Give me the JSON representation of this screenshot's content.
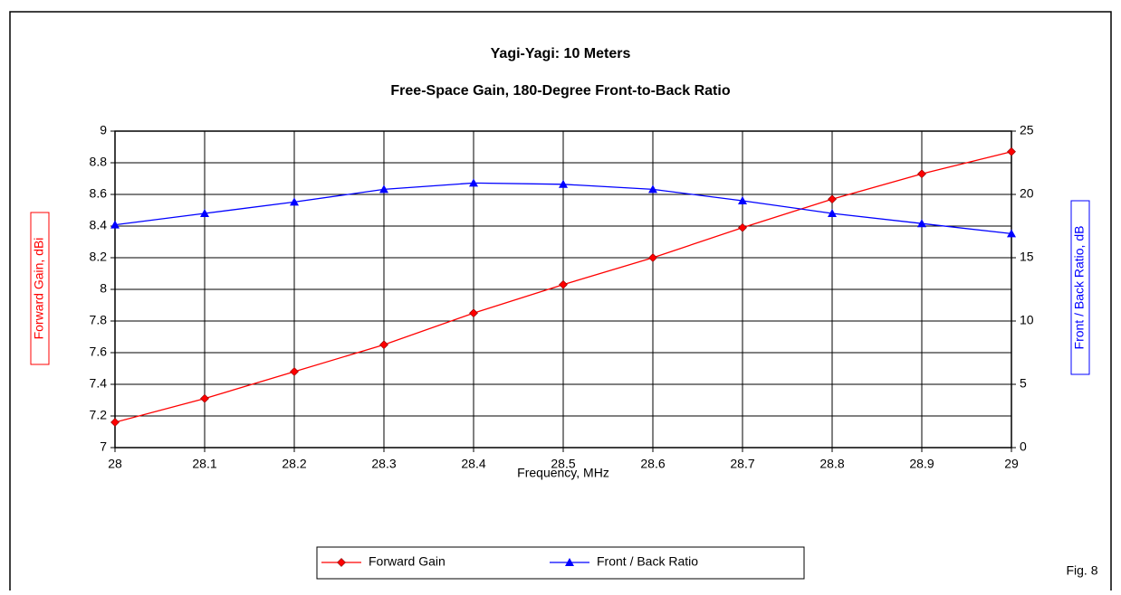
{
  "chart_data": {
    "type": "line",
    "title": "Yagi-Yagi: 10 Meters",
    "subtitle": "Free-Space Gain, 180-Degree Front-to-Back Ratio",
    "x_label": "Frequency, MHz",
    "y_label": "Forward Gain, dBi",
    "y2_label": "Front / Back Ratio, dB",
    "annotation": "Fig. 8",
    "x": [
      28,
      28.1,
      28.2,
      28.3,
      28.4,
      28.5,
      28.6,
      28.7,
      28.8,
      28.9,
      29
    ],
    "xlim": [
      28,
      29
    ],
    "xticks": [
      28,
      28.1,
      28.2,
      28.3,
      28.4,
      28.5,
      28.6,
      28.7,
      28.8,
      28.9,
      29
    ],
    "ylim": [
      7,
      9
    ],
    "yticks": [
      7,
      7.2,
      7.4,
      7.6,
      7.8,
      8,
      8.2,
      8.4,
      8.6,
      8.8,
      9
    ],
    "y2lim": [
      0,
      25
    ],
    "y2ticks": [
      0,
      5,
      10,
      15,
      20,
      25
    ],
    "grid": true,
    "legend": "bottom",
    "series": [
      {
        "name": "Forward Gain",
        "color": "#ff0000",
        "marker": "diamond",
        "values": [
          7.16,
          7.31,
          7.48,
          7.65,
          7.85,
          8.03,
          8.2,
          8.39,
          8.57,
          8.73,
          8.87
        ]
      },
      {
        "name": "Front / Back Ratio",
        "color": "#0000ff",
        "marker": "triangle",
        "axis": "y2",
        "values": [
          17.6,
          18.5,
          19.4,
          20.4,
          20.9,
          20.8,
          20.4,
          19.5,
          18.5,
          17.7,
          16.9
        ]
      }
    ]
  }
}
